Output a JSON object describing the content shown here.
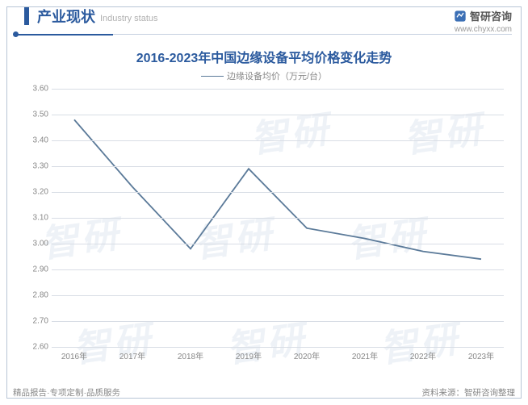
{
  "header": {
    "title_cn": "产业现状",
    "title_en": "Industry status",
    "brand_name": "智研咨询",
    "brand_url": "www.chyxx.com"
  },
  "chart": {
    "type": "line",
    "title": "2016-2023年中国边缘设备平均价格变化走势",
    "legend_label": "边缘设备均价（万元/台）",
    "line_color": "#5b7a99",
    "line_width": 1.8,
    "grid_color": "#d8dde5",
    "background_color": "#ffffff",
    "title_color": "#2b5a9e",
    "title_fontsize": 16,
    "axis_text_color": "#888888",
    "axis_fontsize": 10,
    "ylim": [
      2.6,
      3.6
    ],
    "ytick_step": 0.1,
    "yticks": [
      "2.60",
      "2.70",
      "2.80",
      "2.90",
      "3.00",
      "3.10",
      "3.20",
      "3.30",
      "3.40",
      "3.50",
      "3.60"
    ],
    "categories": [
      "2016年",
      "2017年",
      "2018年",
      "2019年",
      "2020年",
      "2021年",
      "2022年",
      "2023年"
    ],
    "values": [
      3.48,
      3.22,
      2.98,
      3.29,
      3.06,
      3.02,
      2.97,
      2.94
    ]
  },
  "footer": {
    "left": "精品报告·专项定制·品质服务",
    "right": "资料来源：智研咨询整理"
  },
  "watermark": "智研"
}
